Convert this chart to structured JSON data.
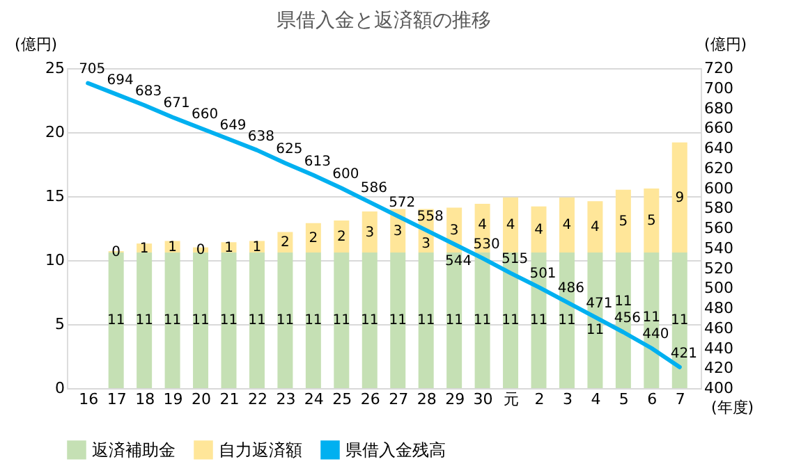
{
  "chart_data": {
    "type": "bar",
    "title": "県借入金と返済額の推移",
    "ylabel": "(億円)",
    "y2label": "(億円)",
    "xlabel": "(年度)",
    "categories": [
      "16",
      "17",
      "18",
      "19",
      "20",
      "21",
      "22",
      "23",
      "24",
      "25",
      "26",
      "27",
      "28",
      "29",
      "30",
      "元",
      "2",
      "3",
      "4",
      "5",
      "6",
      "7"
    ],
    "stacked": true,
    "ylim": [
      0,
      25
    ],
    "yticks": [
      0,
      5,
      10,
      15,
      20,
      25
    ],
    "y2lim": [
      400,
      720
    ],
    "y2ticks": [
      400,
      420,
      440,
      460,
      480,
      500,
      520,
      540,
      560,
      580,
      600,
      620,
      640,
      660,
      680,
      700,
      720
    ],
    "grid": "y",
    "legend": "bottom",
    "series": [
      {
        "name": "返済補助金",
        "color": "#c5e0b4",
        "values": [
          null,
          10.6,
          10.6,
          10.6,
          10.6,
          10.6,
          10.6,
          10.6,
          10.6,
          10.6,
          10.6,
          10.6,
          10.6,
          10.6,
          10.6,
          10.6,
          10.6,
          10.6,
          10.6,
          10.6,
          10.6,
          10.6
        ],
        "value_labels": [
          null,
          "11",
          "11",
          "11",
          "11",
          "11",
          "11",
          "11",
          "11",
          "11",
          "11",
          "11",
          "11",
          "11",
          "11",
          "11",
          "11",
          "11",
          "11",
          "11",
          "11",
          "11"
        ]
      },
      {
        "name": "自力返済額",
        "color": "#ffe699",
        "values": [
          null,
          0.1,
          0.7,
          0.9,
          0.4,
          0.8,
          0.9,
          1.6,
          2.3,
          2.5,
          3.2,
          3.4,
          3.4,
          3.5,
          3.8,
          4.3,
          3.6,
          4.3,
          4.0,
          4.9,
          5.0,
          8.6
        ],
        "value_labels": [
          null,
          "0",
          "1",
          "1",
          "0",
          "1",
          "1",
          "2",
          "2",
          "2",
          "3",
          "3",
          "3",
          "3",
          "4",
          "4",
          "4",
          "4",
          "4",
          "5",
          "5",
          "9"
        ]
      },
      {
        "name": "県借入金残高",
        "type": "line",
        "axis": "y2",
        "color": "#00b0f0",
        "values": [
          705,
          694,
          683,
          671,
          660,
          649,
          638,
          625,
          613,
          600,
          586,
          572,
          558,
          544,
          530,
          515,
          501,
          486,
          471,
          456,
          440,
          421
        ],
        "value_labels": [
          "705",
          "694",
          "683",
          "671",
          "660",
          "649",
          "638",
          "625",
          "613",
          "600",
          "586",
          "572",
          "558",
          "544",
          "530",
          "515",
          "501",
          "486",
          "471",
          "456",
          "440",
          "421"
        ]
      }
    ]
  }
}
